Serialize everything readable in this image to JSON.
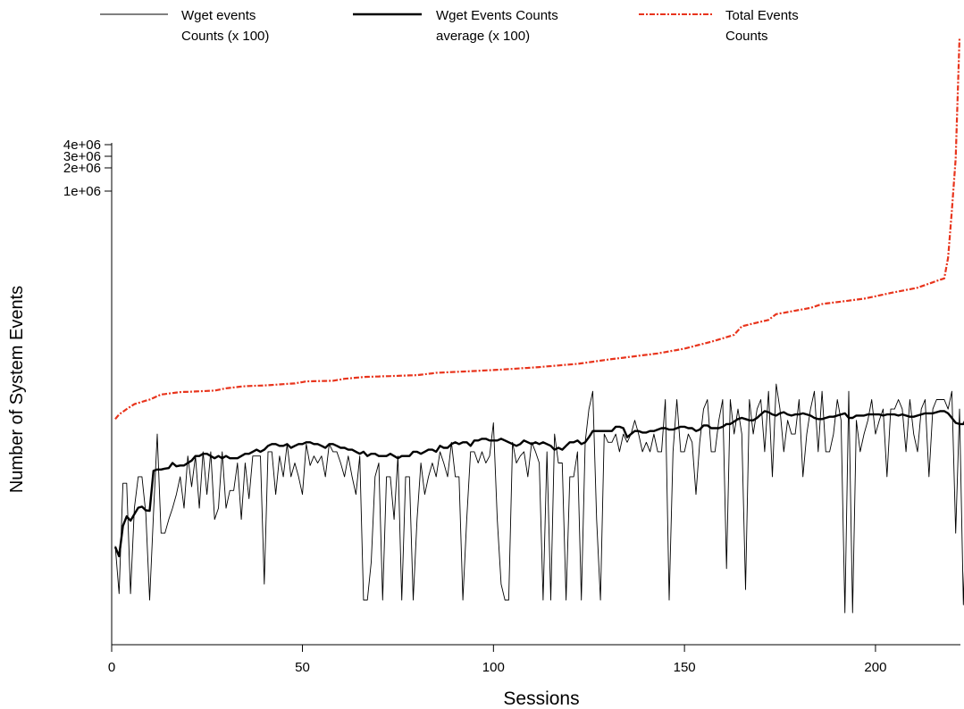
{
  "chart_data": {
    "type": "line",
    "title": "",
    "xlabel": "Sessions",
    "ylabel": "Number of System Events",
    "xlim": [
      1,
      222
    ],
    "x_ticks": [
      "0",
      "50",
      "100",
      "150",
      "200"
    ],
    "y_scale": "log",
    "y_ticks": [
      "1e+06",
      "2e+06",
      "3e+06",
      "4e+06"
    ],
    "legend_position": "top",
    "legend": [
      {
        "label": "Wget events Counts (x 100)",
        "lines": [
          "Wget events",
          "Counts (x 100)"
        ],
        "style": "thin-black"
      },
      {
        "label": "Wget Events Counts average (x 100)",
        "lines": [
          "Wget Events Counts",
          "average (x 100)"
        ],
        "style": "thick-black"
      },
      {
        "label": "Total Events Counts",
        "lines": [
          "Total Events",
          "Counts"
        ],
        "style": "red-dotdash"
      }
    ],
    "series": [
      {
        "name": "Wget events Counts (x 100)",
        "color": "#000000",
        "x_start": 1,
        "values": [
          6500,
          3000,
          18000,
          18000,
          3000,
          12000,
          20000,
          20000,
          11000,
          2700,
          11000,
          40000,
          8000,
          8000,
          10000,
          12000,
          15000,
          20000,
          12000,
          28000,
          17000,
          28000,
          12000,
          30000,
          15000,
          30000,
          10000,
          12000,
          30000,
          12000,
          16000,
          16000,
          25000,
          10000,
          25000,
          14000,
          28000,
          28000,
          28000,
          3500,
          30000,
          30000,
          15000,
          28000,
          20000,
          34000,
          20000,
          25000,
          20000,
          15000,
          34000,
          24000,
          28000,
          25000,
          28000,
          20000,
          34000,
          30000,
          30000,
          25000,
          20000,
          28000,
          20000,
          15000,
          28000,
          2700,
          2700,
          5000,
          20000,
          25000,
          2700,
          20000,
          20000,
          10000,
          28000,
          2700,
          20000,
          20000,
          2700,
          10000,
          25000,
          15000,
          20000,
          25000,
          20000,
          30000,
          25000,
          20000,
          35000,
          20000,
          20000,
          2700,
          10000,
          30000,
          30000,
          25000,
          30000,
          25000,
          28000,
          48000,
          10000,
          3500,
          2700,
          2700,
          35000,
          25000,
          28000,
          30000,
          20000,
          35000,
          30000,
          25000,
          2700,
          30000,
          2700,
          40000,
          25000,
          25000,
          2700,
          20000,
          20000,
          30000,
          2700,
          35000,
          60000,
          80000,
          10000,
          2700,
          40000,
          35000,
          35000,
          40000,
          30000,
          40000,
          35000,
          40000,
          50000,
          40000,
          30000,
          35000,
          30000,
          40000,
          30000,
          30000,
          70000,
          2700,
          30000,
          70000,
          30000,
          30000,
          40000,
          35000,
          15000,
          35000,
          60000,
          70000,
          30000,
          30000,
          50000,
          70000,
          4500,
          70000,
          40000,
          60000,
          40000,
          3200,
          70000,
          40000,
          60000,
          70000,
          30000,
          80000,
          20000,
          90000,
          60000,
          30000,
          50000,
          40000,
          40000,
          70000,
          20000,
          40000,
          60000,
          80000,
          30000,
          80000,
          30000,
          30000,
          40000,
          70000,
          50000,
          2200,
          80000,
          2200,
          50000,
          30000,
          40000,
          50000,
          70000,
          40000,
          50000,
          60000,
          20000,
          60000,
          60000,
          70000,
          60000,
          30000,
          70000,
          40000,
          30000,
          60000,
          70000,
          20000,
          60000,
          70000,
          70000,
          70000,
          60000,
          80000,
          8000,
          60000,
          2500,
          20000,
          2500,
          40000,
          90000
        ],
        "smooth_window": 5
      },
      {
        "name": "Wget Events Counts average (x 100)",
        "color": "#000000",
        "x_start": 1,
        "values": [
          6400,
          5500,
          9000,
          10500,
          9800,
          10900,
          12100,
          12300,
          11600,
          11500,
          22000,
          22500,
          22500,
          22800,
          23000,
          25000,
          23700,
          24000,
          24000,
          25000,
          26000,
          28000,
          28000,
          29000,
          29000,
          28000,
          27000,
          28000,
          27000,
          28000,
          27000,
          27000,
          27000,
          28000,
          29000,
          29000,
          30000,
          31000,
          30000,
          31000,
          33000,
          34000,
          34000,
          33000,
          33000,
          34000,
          32000,
          33000,
          34000,
          34000,
          35000,
          35000,
          34000,
          34000,
          33000,
          32000,
          34000,
          34000,
          33000,
          32000,
          32000,
          31000,
          31000,
          30000,
          29000,
          30000,
          28000,
          29000,
          29000,
          28000,
          28000,
          28000,
          29000,
          28000,
          27000,
          28000,
          28000,
          28000,
          30000,
          30000,
          29000,
          30000,
          31000,
          31000,
          30000,
          33000,
          32000,
          32000,
          34000,
          35000,
          34000,
          35000,
          35000,
          33000,
          36000,
          36000,
          37000,
          37000,
          36000,
          36000,
          36000,
          37000,
          36000,
          35000,
          34000,
          33000,
          34000,
          36000,
          35000,
          34000,
          35000,
          34000,
          35000,
          34000,
          33000,
          31000,
          32000,
          31000,
          33000,
          35000,
          35000,
          36000,
          34000,
          35000,
          38000,
          42000,
          42000,
          42000,
          42000,
          42000,
          42000,
          45000,
          45000,
          44000,
          38000,
          40000,
          42000,
          42000,
          41000,
          41000,
          42000,
          42000,
          43000,
          44000,
          44000,
          43000,
          43000,
          44000,
          45000,
          45000,
          44000,
          44000,
          42000,
          43000,
          46000,
          46000,
          44000,
          44000,
          44000,
          45000,
          47000,
          47000,
          49000,
          51000,
          52000,
          51000,
          50000,
          50000,
          52000,
          55000,
          58000,
          57000,
          55000,
          54000,
          56000,
          57000,
          55000,
          54000,
          55000,
          55000,
          56000,
          55000,
          54000,
          52000,
          51000,
          51000,
          52000,
          53000,
          53000,
          54000,
          55000,
          56000,
          52000,
          52000,
          54000,
          54000,
          54000,
          55000,
          55000,
          55000,
          55000,
          54000,
          55000,
          55000,
          55000,
          54000,
          55000,
          54000,
          53000,
          53000,
          54000,
          55000,
          56000,
          56000,
          56000,
          57000,
          58000,
          58000,
          56000,
          52000,
          48000,
          47000,
          47000,
          53000
        ],
        "smooth_window": 5
      },
      {
        "name": "Total Events Counts",
        "color": "#e8341c",
        "x_start": 1,
        "anchors": [
          [
            1,
            51000
          ],
          [
            2,
            55000
          ],
          [
            4,
            60000
          ],
          [
            6,
            65000
          ],
          [
            10,
            70000
          ],
          [
            13,
            76000
          ],
          [
            18,
            79000
          ],
          [
            23,
            80000
          ],
          [
            27,
            81000
          ],
          [
            30,
            84000
          ],
          [
            35,
            87000
          ],
          [
            40,
            88000
          ],
          [
            48,
            91000
          ],
          [
            51,
            94000
          ],
          [
            58,
            95000
          ],
          [
            61,
            98000
          ],
          [
            66,
            101000
          ],
          [
            80,
            104000
          ],
          [
            85,
            108000
          ],
          [
            100,
            113000
          ],
          [
            111,
            118000
          ],
          [
            122,
            125000
          ],
          [
            131,
            135000
          ],
          [
            143,
            148000
          ],
          [
            150,
            160000
          ],
          [
            158,
            182000
          ],
          [
            163,
            200000
          ],
          [
            165,
            230000
          ],
          [
            172,
            255000
          ],
          [
            174,
            280000
          ],
          [
            183,
            310000
          ],
          [
            186,
            330000
          ],
          [
            197,
            360000
          ],
          [
            205,
            400000
          ],
          [
            211,
            430000
          ],
          [
            216,
            480000
          ],
          [
            218,
            500000
          ],
          [
            219,
            700000
          ],
          [
            220,
            1500000
          ],
          [
            221,
            3500000
          ],
          [
            222,
            25000000
          ]
        ]
      }
    ]
  }
}
